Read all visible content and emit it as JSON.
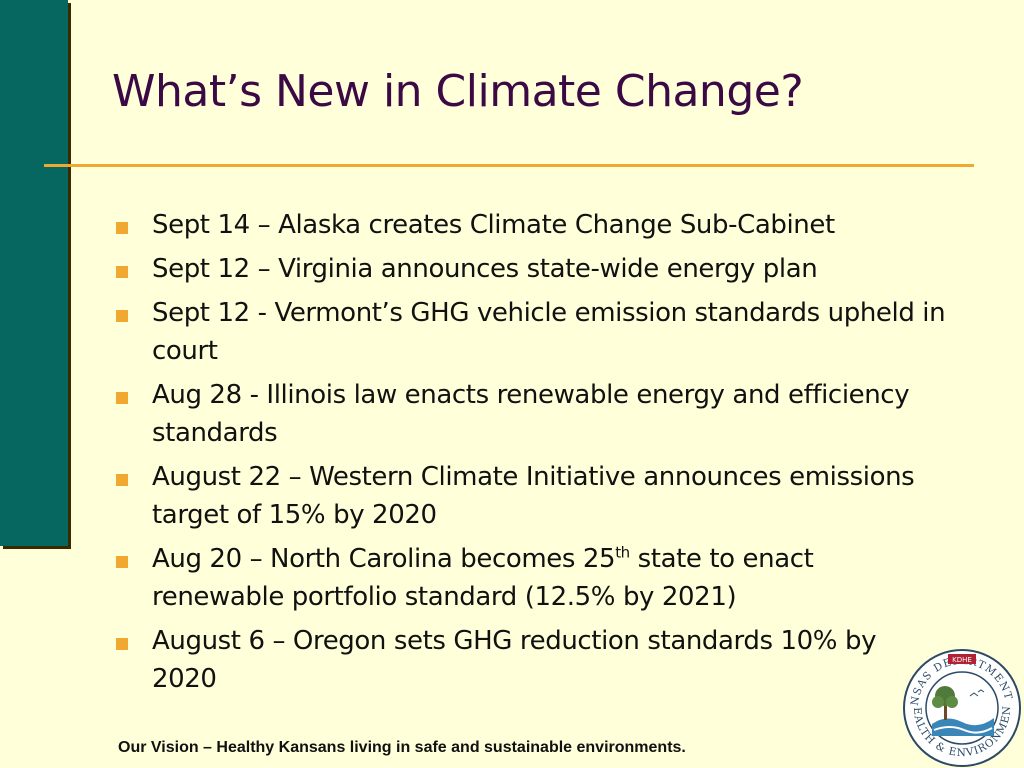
{
  "slide": {
    "title": "What’s New in Climate Change?",
    "bullets": [
      {
        "text": "Sept 14 – Alaska creates Climate Change Sub-Cabinet"
      },
      {
        "text": "Sept 12 – Virginia announces state-wide energy plan"
      },
      {
        "text": "Sept 12 - Vermont’s GHG vehicle emission standards upheld in court"
      },
      {
        "text": "Aug 28 - Illinois law enacts renewable energy and efficiency standards"
      },
      {
        "text": "August 22 – Western Climate Initiative announces emissions target of 15% by 2020"
      },
      {
        "text_before": "Aug 20 – North Carolina becomes 25",
        "sup": "th",
        "text_after": " state to enact renewable portfolio standard (12.5% by 2021)"
      },
      {
        "text": "August 6 – Oregon sets GHG reduction standards 10% by 2020"
      }
    ],
    "footer": "Our Vision – Healthy Kansans living in safe and sustainable environments."
  },
  "seal": {
    "top_text": "KANSAS DEPARTMENT OF",
    "bottom_text": "HEALTH & ENVIRONMENT",
    "badge": "KDHE"
  },
  "colors": {
    "background": "#FFFFD9",
    "side_bar": "#05675F",
    "title": "#3B0A45",
    "accent": "#F0A830"
  }
}
